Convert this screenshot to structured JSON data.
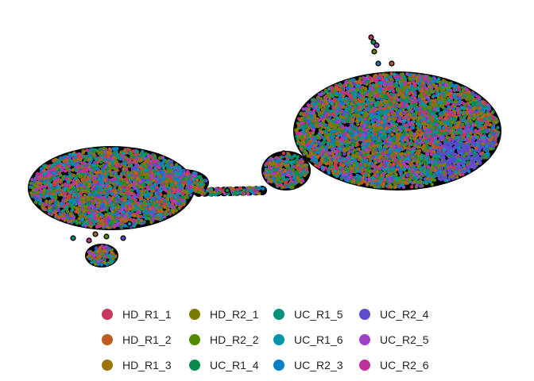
{
  "chart_data": {
    "type": "scatter",
    "title": "",
    "xlabel": "",
    "ylabel": "",
    "axes": "none",
    "grid": false,
    "legend_position": "bottom",
    "series": [
      {
        "name": "HD_R1_1",
        "color": "#c8385a"
      },
      {
        "name": "HD_R1_2",
        "color": "#c05a1e"
      },
      {
        "name": "HD_R1_3",
        "color": "#9a7300"
      },
      {
        "name": "HD_R2_1",
        "color": "#7a7a00"
      },
      {
        "name": "HD_R2_2",
        "color": "#4f8a00"
      },
      {
        "name": "UC_R1_4",
        "color": "#0c8a4e"
      },
      {
        "name": "UC_R1_5",
        "color": "#00937a"
      },
      {
        "name": "UC_R1_6",
        "color": "#0094a8"
      },
      {
        "name": "UC_R2_3",
        "color": "#0080c8"
      },
      {
        "name": "UC_R2_4",
        "color": "#5b4bd0"
      },
      {
        "name": "UC_R2_5",
        "color": "#a040c8"
      },
      {
        "name": "UC_R2_6",
        "color": "#c0309a"
      }
    ]
  }
}
